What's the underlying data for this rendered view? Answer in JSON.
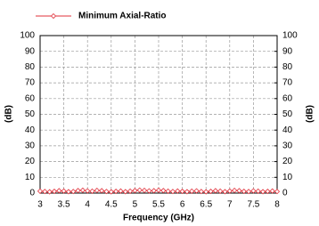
{
  "chart_data": {
    "type": "line",
    "xlabel": "Frequency (GHz)",
    "ylabel": "(dB)",
    "y2label": "(dB)",
    "x": [
      3,
      3.1,
      3.2,
      3.3,
      3.4,
      3.5,
      3.6,
      3.7,
      3.8,
      3.9,
      4,
      4.1,
      4.2,
      4.3,
      4.4,
      4.5,
      4.6,
      4.7,
      4.8,
      4.9,
      5,
      5.1,
      5.2,
      5.3,
      5.4,
      5.5,
      5.6,
      5.7,
      5.8,
      5.9,
      6,
      6.1,
      6.2,
      6.3,
      6.4,
      6.5,
      6.6,
      6.7,
      6.8,
      6.9,
      7,
      7.1,
      7.2,
      7.3,
      7.4,
      7.5,
      7.6,
      7.7,
      7.8,
      7.9,
      8
    ],
    "series": [
      {
        "name": "Minimum Axial-Ratio",
        "color": "#e0303a",
        "values": [
          1.2,
          1.0,
          0.8,
          1.1,
          1.5,
          1.3,
          0.9,
          1.0,
          1.6,
          1.8,
          1.4,
          1.2,
          1.7,
          1.5,
          1.0,
          0.8,
          1.1,
          1.3,
          0.9,
          1.2,
          1.6,
          1.9,
          1.7,
          1.4,
          1.5,
          1.8,
          1.6,
          1.2,
          1.0,
          1.3,
          1.1,
          0.9,
          1.2,
          1.4,
          1.0,
          0.8,
          1.1,
          1.5,
          1.2,
          0.9,
          1.3,
          1.7,
          1.5,
          1.1,
          1.0,
          1.4,
          1.2,
          0.9,
          1.1,
          1.3,
          1.0
        ]
      }
    ],
    "xlim": [
      3,
      8
    ],
    "xticks": [
      3,
      3.5,
      4,
      4.5,
      5,
      5.5,
      6,
      6.5,
      7,
      7.5,
      8
    ],
    "ylim": [
      0,
      100
    ],
    "yticks": [
      0,
      10,
      20,
      30,
      40,
      50,
      60,
      70,
      80,
      90,
      100
    ],
    "y2lim": [
      0,
      100
    ],
    "y2ticks": [
      0,
      10,
      20,
      30,
      40,
      50,
      60,
      70,
      80,
      90,
      100
    ],
    "grid": true,
    "legend": "top-left"
  }
}
